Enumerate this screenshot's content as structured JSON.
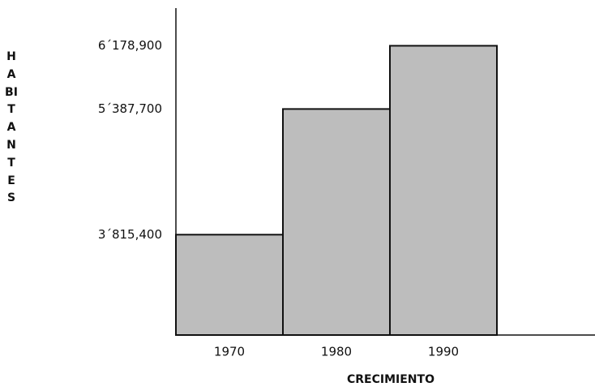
{
  "chart_data": {
    "type": "bar",
    "y_label": "HABITANTES",
    "x_label": "CRECIMIENTO",
    "categories": [
      "1970",
      "1980",
      "1990"
    ],
    "values": [
      3815400,
      5387700,
      6178900
    ],
    "color": "#bdbdbd",
    "ylim": [
      2560000,
      6650000
    ],
    "yticks": [
      {
        "value": 3815400,
        "label": "3´815,400"
      },
      {
        "value": 5387700,
        "label": "5´387,700"
      },
      {
        "value": 6178900,
        "label": "6´178,900"
      }
    ],
    "grid": false
  }
}
